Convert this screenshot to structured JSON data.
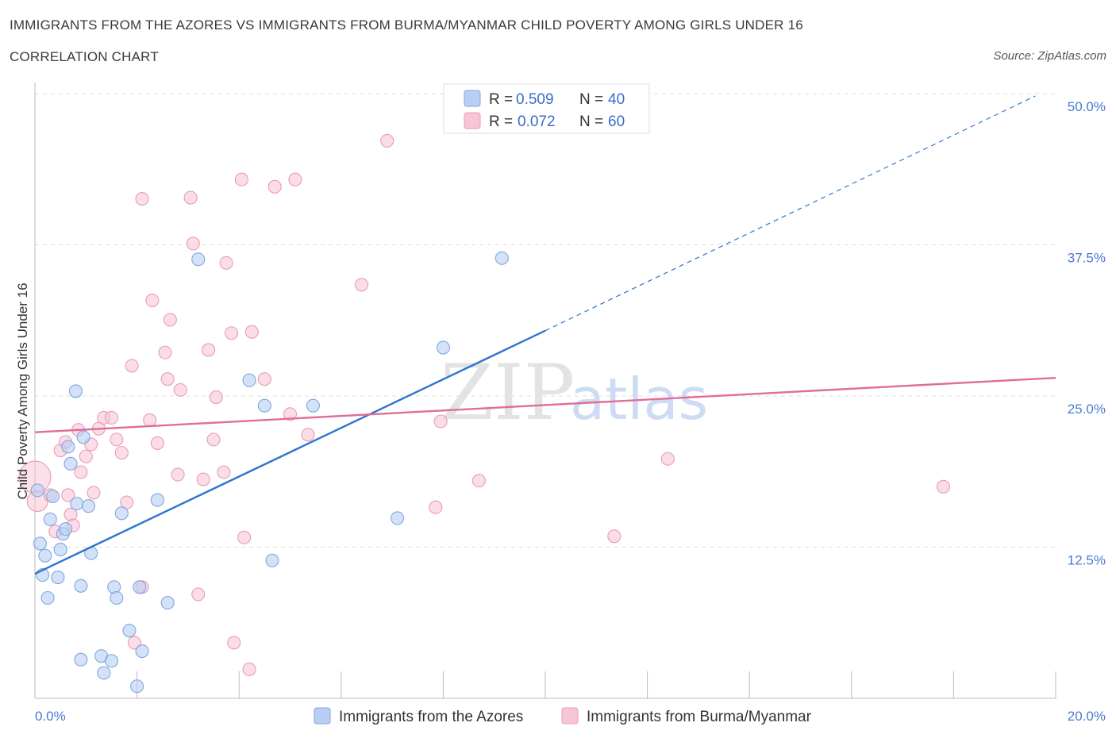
{
  "header": {
    "title": "IMMIGRANTS FROM THE AZORES VS IMMIGRANTS FROM BURMA/MYANMAR CHILD POVERTY AMONG GIRLS UNDER 16",
    "subtitle": "CORRELATION CHART",
    "source": "Source: ZipAtlas.com"
  },
  "watermark": {
    "zip": "ZIP",
    "atlas": "atlas"
  },
  "colors": {
    "blue_fill": "#b8cff3",
    "blue_stroke": "#7fa6e2",
    "blue_line": "#2f74d0",
    "pink_fill": "#f7c6d6",
    "pink_stroke": "#ea9bb6",
    "pink_line": "#e06d96",
    "grid": "#dcdcdc",
    "axis": "#bbbbbb"
  },
  "chart_data": {
    "type": "scatter",
    "title": "IMMIGRANTS FROM THE AZORES VS IMMIGRANTS FROM BURMA/MYANMAR CHILD POVERTY AMONG GIRLS UNDER 16",
    "xlabel": "",
    "ylabel": "Child Poverty Among Girls Under 16",
    "xlim": [
      0,
      20
    ],
    "ylim": [
      0,
      50
    ],
    "x_tick_labels": {
      "left": "0.0%",
      "right": "20.0%"
    },
    "y_ticks": [
      {
        "value": 12.5,
        "label": "12.5%"
      },
      {
        "value": 25.0,
        "label": "25.0%"
      },
      {
        "value": 37.5,
        "label": "37.5%"
      },
      {
        "value": 50.0,
        "label": "50.0%"
      }
    ],
    "legend": {
      "position": "top-center",
      "rows": [
        {
          "r_label": "R = ",
          "r_value": "0.509",
          "n_label": "N = ",
          "n_value": "40"
        },
        {
          "r_label": "R = ",
          "r_value": "0.072",
          "n_label": "N = ",
          "n_value": "60"
        }
      ]
    },
    "series": [
      {
        "name": "Immigrants from the Azores",
        "color": "blue",
        "trend": {
          "x0": 0.0,
          "y0": 10.3,
          "x1": 10.0,
          "y1": 30.4,
          "dash_to_x": 19.6,
          "dash_to_y": 49.8
        },
        "points": [
          [
            0.05,
            17.2
          ],
          [
            0.1,
            12.8
          ],
          [
            0.15,
            10.2
          ],
          [
            0.2,
            11.8
          ],
          [
            0.25,
            8.3
          ],
          [
            0.3,
            14.8
          ],
          [
            0.35,
            16.7
          ],
          [
            0.45,
            10.0
          ],
          [
            0.5,
            12.3
          ],
          [
            0.55,
            13.6
          ],
          [
            0.6,
            14.0
          ],
          [
            0.65,
            20.8
          ],
          [
            0.7,
            19.4
          ],
          [
            0.8,
            25.4
          ],
          [
            0.82,
            16.1
          ],
          [
            0.9,
            9.3
          ],
          [
            0.95,
            21.6
          ],
          [
            1.05,
            15.9
          ],
          [
            1.1,
            12.0
          ],
          [
            0.9,
            3.2
          ],
          [
            1.3,
            3.5
          ],
          [
            1.35,
            2.1
          ],
          [
            1.5,
            3.1
          ],
          [
            1.55,
            9.2
          ],
          [
            1.6,
            8.3
          ],
          [
            1.7,
            15.3
          ],
          [
            1.85,
            5.6
          ],
          [
            2.0,
            1.0
          ],
          [
            2.1,
            3.9
          ],
          [
            2.05,
            9.2
          ],
          [
            2.4,
            16.4
          ],
          [
            2.6,
            7.9
          ],
          [
            3.2,
            36.3
          ],
          [
            4.2,
            26.3
          ],
          [
            4.5,
            24.2
          ],
          [
            4.65,
            11.4
          ],
          [
            5.45,
            24.2
          ],
          [
            7.1,
            14.9
          ],
          [
            8.0,
            29.0
          ],
          [
            9.15,
            36.4
          ]
        ]
      },
      {
        "name": "Immigrants from Burma/Myanmar",
        "color": "pink",
        "trend": {
          "x0": 0.0,
          "y0": 22.0,
          "x1": 20.0,
          "y1": 26.5
        },
        "points": [
          [
            0.0,
            18.3
          ],
          [
            0.05,
            16.3
          ],
          [
            0.3,
            16.8
          ],
          [
            0.4,
            13.8
          ],
          [
            0.5,
            20.5
          ],
          [
            0.6,
            21.2
          ],
          [
            0.65,
            16.8
          ],
          [
            0.7,
            15.2
          ],
          [
            0.75,
            14.3
          ],
          [
            0.85,
            22.2
          ],
          [
            0.9,
            18.7
          ],
          [
            1.0,
            20.0
          ],
          [
            1.1,
            21.0
          ],
          [
            1.15,
            17.0
          ],
          [
            1.25,
            22.3
          ],
          [
            1.35,
            23.2
          ],
          [
            1.5,
            23.2
          ],
          [
            1.6,
            21.4
          ],
          [
            1.7,
            20.3
          ],
          [
            1.8,
            16.2
          ],
          [
            1.9,
            27.5
          ],
          [
            1.95,
            4.6
          ],
          [
            2.1,
            9.2
          ],
          [
            2.1,
            41.3
          ],
          [
            2.25,
            23.0
          ],
          [
            2.3,
            32.9
          ],
          [
            2.4,
            21.1
          ],
          [
            2.55,
            28.6
          ],
          [
            2.6,
            26.4
          ],
          [
            2.65,
            31.3
          ],
          [
            2.8,
            18.5
          ],
          [
            2.85,
            25.5
          ],
          [
            3.05,
            41.4
          ],
          [
            3.1,
            37.6
          ],
          [
            3.2,
            8.6
          ],
          [
            3.3,
            18.1
          ],
          [
            3.4,
            28.8
          ],
          [
            3.5,
            21.4
          ],
          [
            3.55,
            24.9
          ],
          [
            3.7,
            18.7
          ],
          [
            3.75,
            36.0
          ],
          [
            3.85,
            30.2
          ],
          [
            3.9,
            4.6
          ],
          [
            4.05,
            42.9
          ],
          [
            4.1,
            13.3
          ],
          [
            4.2,
            2.4
          ],
          [
            4.25,
            30.3
          ],
          [
            4.5,
            26.4
          ],
          [
            4.7,
            42.3
          ],
          [
            5.1,
            42.9
          ],
          [
            5.35,
            21.8
          ],
          [
            6.4,
            34.2
          ],
          [
            6.9,
            46.1
          ],
          [
            7.85,
            15.8
          ],
          [
            7.95,
            22.9
          ],
          [
            8.7,
            18.0
          ],
          [
            11.35,
            13.4
          ],
          [
            12.4,
            19.8
          ],
          [
            17.8,
            17.5
          ],
          [
            5.0,
            23.5
          ]
        ]
      }
    ]
  }
}
